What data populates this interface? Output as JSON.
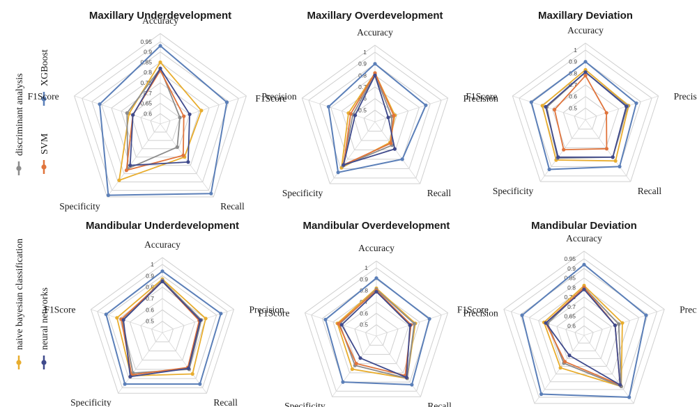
{
  "colors": {
    "discriminant_analysis": "#8c8c8c",
    "svm": "#e0743c",
    "xgboost": "#5b7fb8",
    "naive_bayes": "#e8ad2e",
    "neural_networks": "#3f4a8c"
  },
  "legend": [
    {
      "label": "discriminant analysis",
      "color": "#8c8c8c"
    },
    {
      "label": "SVM",
      "color": "#e0743c"
    },
    {
      "label": "XGBoost",
      "color": "#5b7fb8"
    },
    {
      "label": "naive bayesian classification",
      "color": "#e8ad2e"
    },
    {
      "label": "neural networks",
      "color": "#3f4a8c"
    }
  ],
  "chart_data": [
    {
      "type": "radar",
      "title": "Maxillary Underdevelopment",
      "axes": [
        "Accuracy",
        "Precision",
        "Recall",
        "Specificity",
        "F1Score"
      ],
      "ticks": [
        0.95,
        0.9,
        0.85,
        0.8,
        0.75,
        0.7,
        0.65,
        0.6
      ],
      "tick_labels": [
        "0.95",
        "0.9",
        "0.85",
        "0.8",
        "0.75",
        "0.7",
        "0.65",
        "0.6"
      ],
      "range": [
        0.55,
        0.95
      ],
      "series": [
        {
          "name": "XGBoost",
          "values": [
            0.93,
            0.89,
            0.97,
            0.98,
            0.86
          ]
        },
        {
          "name": "naive bayesian classification",
          "values": [
            0.85,
            0.76,
            0.75,
            0.89,
            0.71
          ]
        },
        {
          "name": "SVM",
          "values": [
            0.81,
            0.67,
            0.74,
            0.83,
            0.69
          ]
        },
        {
          "name": "discriminant analysis",
          "values": [
            0.82,
            0.65,
            0.69,
            0.82,
            0.72
          ]
        },
        {
          "name": "neural networks",
          "values": [
            0.82,
            0.7,
            0.78,
            0.8,
            0.69
          ]
        }
      ]
    },
    {
      "type": "radar",
      "title": "Maxillary Overdevelopment",
      "axes": [
        "Accuracy",
        "Precision",
        "Recall",
        "Specificity",
        "F1Score"
      ],
      "ticks": [
        1,
        0.9,
        0.8,
        0.7,
        0.6,
        0.5
      ],
      "tick_labels": [
        "1",
        "0.9",
        "0.8",
        "0.7",
        "0.6",
        "0.5"
      ],
      "range": [
        0.4,
        1.0
      ],
      "series": [
        {
          "name": "XGBoost",
          "values": [
            0.9,
            0.86,
            0.8,
            0.94,
            0.82
          ]
        },
        {
          "name": "naive bayesian classification",
          "values": [
            0.82,
            0.58,
            0.62,
            0.89,
            0.64
          ]
        },
        {
          "name": "SVM",
          "values": [
            0.82,
            0.57,
            0.63,
            0.86,
            0.62
          ]
        },
        {
          "name": "discriminant analysis",
          "values": [
            0.81,
            0.55,
            0.65,
            0.87,
            0.6
          ]
        },
        {
          "name": "neural networks",
          "values": [
            0.8,
            0.52,
            0.69,
            0.86,
            0.58
          ]
        }
      ]
    },
    {
      "type": "radar",
      "title": "Maxillary Deviation",
      "axes": [
        "Accuracy",
        "Precision",
        "Recall",
        "Specificity",
        "F1Score"
      ],
      "ticks": [
        1,
        0.9,
        0.8,
        0.7,
        0.6,
        0.5
      ],
      "tick_labels": [
        "1",
        "0.9",
        "0.8",
        "0.7",
        "0.6",
        "0.5"
      ],
      "range": [
        0.4,
        1.0
      ],
      "series": [
        {
          "name": "XGBoost",
          "values": [
            0.9,
            0.86,
            0.9,
            0.93,
            0.89
          ]
        },
        {
          "name": "naive bayesian classification",
          "values": [
            0.83,
            0.79,
            0.84,
            0.83,
            0.79
          ]
        },
        {
          "name": "SVM",
          "values": [
            0.78,
            0.59,
            0.71,
            0.72,
            0.68
          ]
        },
        {
          "name": "discriminant analysis",
          "values": [
            0.81,
            0.78,
            0.8,
            0.81,
            0.75
          ]
        },
        {
          "name": "neural networks",
          "values": [
            0.81,
            0.77,
            0.8,
            0.8,
            0.76
          ]
        }
      ]
    },
    {
      "type": "radar",
      "title": "Mandibular Underdevelopment",
      "axes": [
        "Accuracy",
        "Precision",
        "Recall",
        "Specificity",
        "F1Score"
      ],
      "ticks": [
        1,
        0.9,
        0.8,
        0.7,
        0.6,
        0.5
      ],
      "tick_labels": [
        "1",
        "0.9",
        "0.8",
        "0.7",
        "0.6",
        "0.5"
      ],
      "range": [
        0.4,
        1.0
      ],
      "series": [
        {
          "name": "XGBoost",
          "values": [
            0.94,
            0.94,
            0.96,
            0.96,
            0.92
          ]
        },
        {
          "name": "naive bayesian classification",
          "values": [
            0.87,
            0.8,
            0.85,
            0.87,
            0.82
          ]
        },
        {
          "name": "SVM",
          "values": [
            0.85,
            0.74,
            0.78,
            0.86,
            0.78
          ]
        },
        {
          "name": "discriminant analysis",
          "values": [
            0.86,
            0.76,
            0.8,
            0.84,
            0.77
          ]
        },
        {
          "name": "neural networks",
          "values": [
            0.85,
            0.75,
            0.79,
            0.88,
            0.76
          ]
        }
      ]
    },
    {
      "type": "radar",
      "title": "Mandibular Overdevelopment",
      "axes": [
        "Accuracy",
        "Precision",
        "Recall",
        "Specificity",
        "F1Score"
      ],
      "ticks": [
        1,
        0.9,
        0.8,
        0.7,
        0.6,
        0.5
      ],
      "tick_labels": [
        "1",
        "0.9",
        "0.8",
        "0.7",
        "0.6",
        "0.5"
      ],
      "range": [
        0.4,
        1.0
      ],
      "series": [
        {
          "name": "XGBoost",
          "values": [
            0.91,
            0.89,
            0.93,
            0.9,
            0.87
          ]
        },
        {
          "name": "naive bayesian classification",
          "values": [
            0.82,
            0.76,
            0.86,
            0.76,
            0.76
          ]
        },
        {
          "name": "SVM",
          "values": [
            0.8,
            0.72,
            0.83,
            0.7,
            0.75
          ]
        },
        {
          "name": "discriminant analysis",
          "values": [
            0.81,
            0.75,
            0.86,
            0.72,
            0.74
          ]
        },
        {
          "name": "neural networks",
          "values": [
            0.79,
            0.71,
            0.85,
            0.64,
            0.72
          ]
        }
      ]
    },
    {
      "type": "radar",
      "title": "Mandibular Deviation",
      "axes": [
        "Accuracy",
        "Precision",
        "Recall",
        "Specificity",
        "F1Score"
      ],
      "ticks": [
        0.95,
        0.9,
        0.85,
        0.8,
        0.75,
        0.7,
        0.65,
        0.6
      ],
      "tick_labels": [
        "0.95",
        "0.9",
        "0.85",
        "0.8",
        "0.75",
        "0.7",
        "0.65",
        "0.6"
      ],
      "range": [
        0.55,
        0.95
      ],
      "series": [
        {
          "name": "XGBoost",
          "values": [
            0.92,
            0.89,
            0.95,
            0.93,
            0.89
          ]
        },
        {
          "name": "naive bayesian classification",
          "values": [
            0.81,
            0.76,
            0.88,
            0.76,
            0.77
          ]
        },
        {
          "name": "SVM",
          "values": [
            0.8,
            0.72,
            0.87,
            0.72,
            0.76
          ]
        },
        {
          "name": "discriminant analysis",
          "values": [
            0.8,
            0.74,
            0.88,
            0.73,
            0.75
          ]
        },
        {
          "name": "neural networks",
          "values": [
            0.79,
            0.72,
            0.87,
            0.68,
            0.76
          ]
        }
      ]
    }
  ]
}
